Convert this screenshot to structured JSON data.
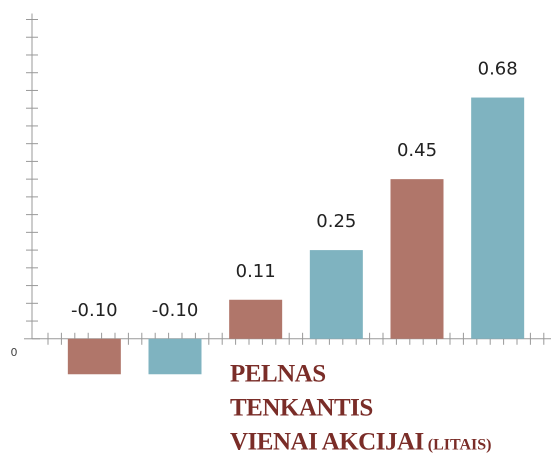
{
  "chart_data": {
    "type": "bar",
    "title_lines": [
      "PELNAS",
      "TENKANTIS",
      "VIENAI AKCIJAI"
    ],
    "unit": "(LITAIS)",
    "categories": [
      null,
      null,
      null,
      null,
      null,
      null
    ],
    "values": [
      -0.1,
      -0.1,
      0.11,
      0.25,
      0.45,
      0.68
    ],
    "value_labels": [
      "-0.10",
      "-0.10",
      "0.11",
      "0.25",
      "0.45",
      "0.68"
    ],
    "colors": [
      "#b0766a",
      "#7fb3c0",
      "#b0766a",
      "#7fb3c0",
      "#b0766a",
      "#7fb3c0"
    ],
    "ylim": [
      -0.15,
      0.9
    ],
    "yticks": [
      0
    ],
    "yminor_ticks": [
      0.05,
      0.1,
      0.15,
      0.2,
      0.25,
      0.3,
      0.35,
      0.4,
      0.45,
      0.5,
      0.55,
      0.6,
      0.65,
      0.7,
      0.75,
      0.8,
      0.85,
      0.9
    ]
  }
}
